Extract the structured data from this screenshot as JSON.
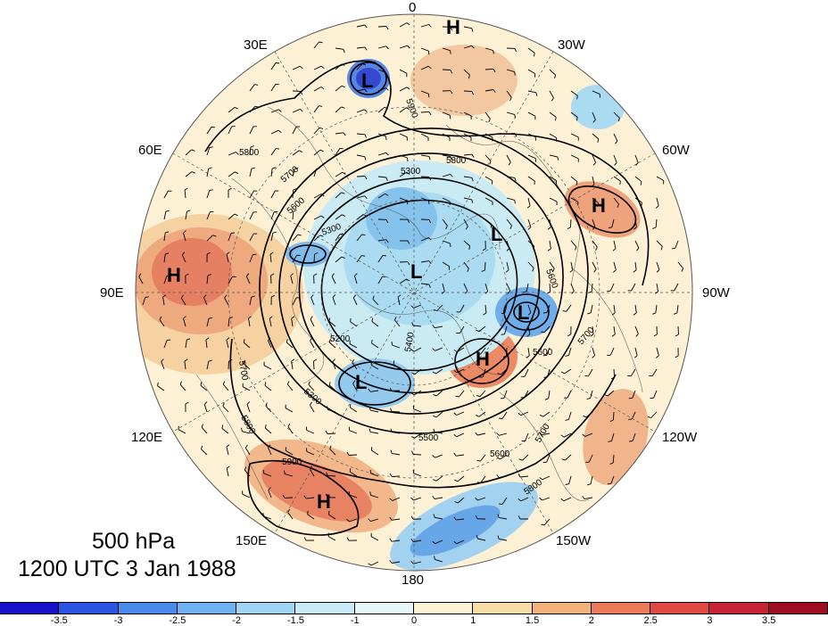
{
  "title": {
    "level": "500 hPa",
    "valid_time": "1200 UTC 3 Jan 1988"
  },
  "longitude_labels": {
    "top": "0",
    "top_left": "30E",
    "top_right": "30W",
    "upper_left": "60E",
    "upper_right": "60W",
    "left": "90E",
    "right": "90W",
    "lower_left": "120E",
    "lower_right": "120W",
    "bottom_left": "150E",
    "bottom_right": "150W",
    "bottom": "180"
  },
  "pressure_centers": [
    {
      "label": "H",
      "id": "high-north-atlantic"
    },
    {
      "label": "L",
      "id": "low-scandinavia"
    },
    {
      "label": "H",
      "id": "high-west-atlantic"
    },
    {
      "label": "L",
      "id": "low-north-canada"
    },
    {
      "label": "L",
      "id": "low-arctic"
    },
    {
      "label": "H",
      "id": "high-siberia"
    },
    {
      "label": "L",
      "id": "low-hudson-bay"
    },
    {
      "label": "H",
      "id": "high-alaska"
    },
    {
      "label": "L",
      "id": "low-east-siberia"
    },
    {
      "label": "H",
      "id": "high-north-pacific"
    }
  ],
  "contour_labels": [
    "5900",
    "5800",
    "5700",
    "5300",
    "5600",
    "5300",
    "5200",
    "5400",
    "5800",
    "5600",
    "5500",
    "5600",
    "5700",
    "5800",
    "5900",
    "5600",
    "5700",
    "5700",
    "5800",
    "5300"
  ],
  "colorbar": {
    "tick_labels": [
      "-3.5",
      "-3",
      "-2.5",
      "-2",
      "-1.5",
      "-1",
      "0",
      "1",
      "1.5",
      "2",
      "2.5",
      "3",
      "3.5"
    ],
    "colors": [
      "#1a10c8",
      "#2a55e0",
      "#4a8ae8",
      "#6fb0f0",
      "#9fd4f5",
      "#c6ebf7",
      "#e6f7fa",
      "#fcf3d2",
      "#f7dca6",
      "#f3b27a",
      "#ea7c5a",
      "#e04a45",
      "#c82235",
      "#9e0e22"
    ]
  }
}
